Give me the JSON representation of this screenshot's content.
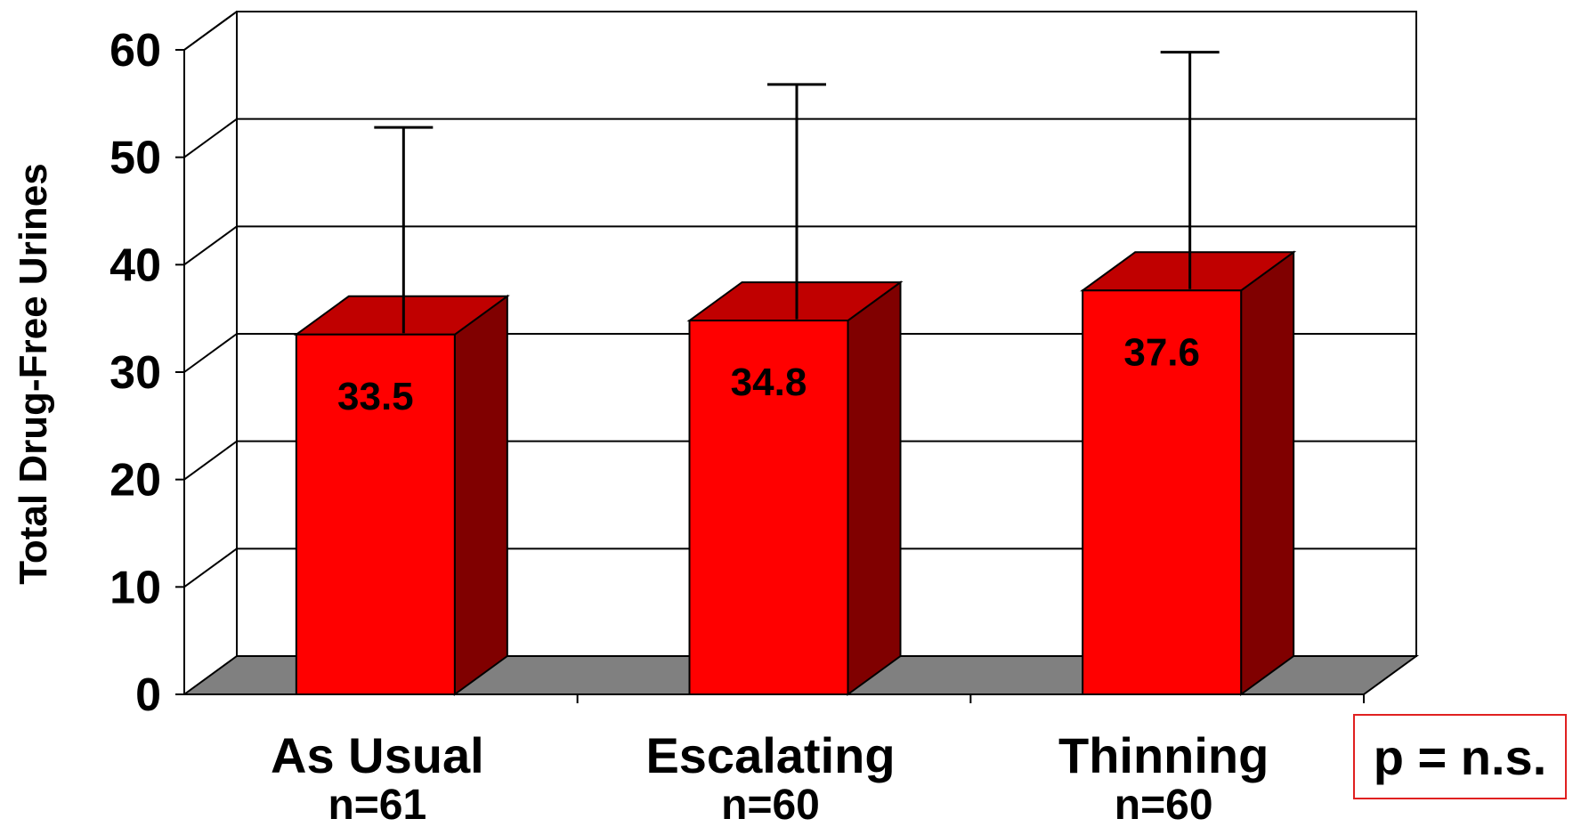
{
  "chart_data": {
    "type": "bar",
    "categories": [
      "As Usual",
      "Escalating",
      "Thinning"
    ],
    "sample_sizes": [
      "n=61",
      "n=60",
      "n=60"
    ],
    "series": [
      {
        "values": [
          33.5,
          34.8,
          37.6
        ],
        "error_upper": [
          51.0,
          55.0,
          58.0
        ]
      }
    ],
    "data_labels": [
      "33.5",
      "34.8",
      "37.6"
    ],
    "ylabel": "Total Drug-Free Urines",
    "yticks": [
      "0",
      "10",
      "20",
      "30",
      "40",
      "50",
      "60"
    ],
    "ylim": [
      0,
      60
    ],
    "grid": true,
    "annotation": "p = n.s.",
    "colors": {
      "bar_front": "#ff0000",
      "bar_top": "#c00000",
      "bar_side": "#800000",
      "floor": "#808080"
    }
  }
}
